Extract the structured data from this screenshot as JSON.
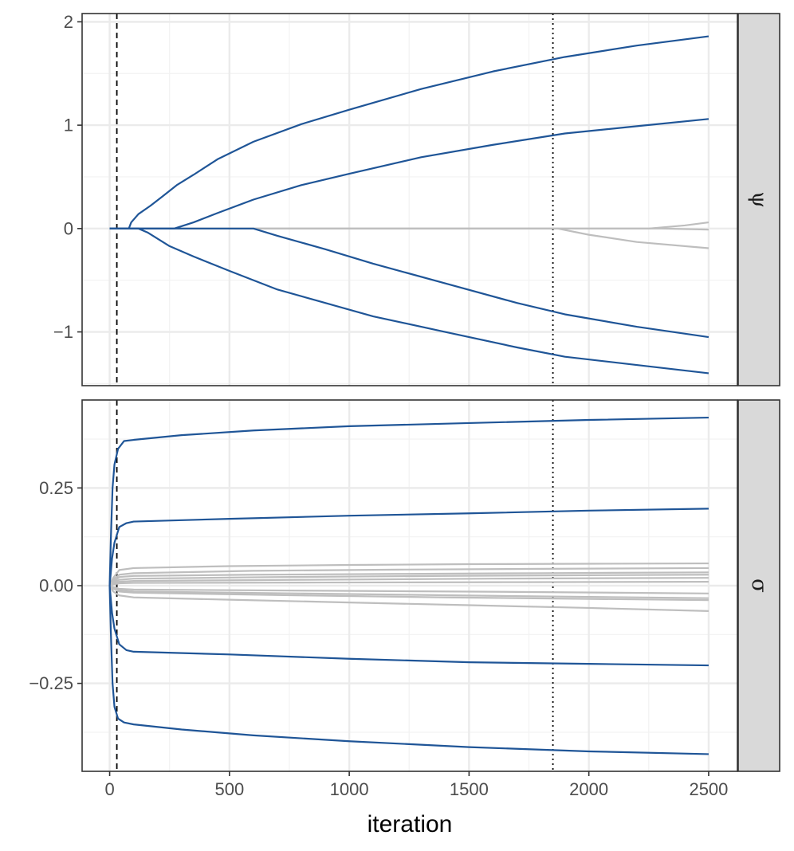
{
  "chart_data": {
    "type": "line",
    "title": "",
    "xlabel": "iteration",
    "x_ticks": [
      0,
      500,
      1000,
      1500,
      2000,
      2500
    ],
    "xlim": [
      -115,
      2620
    ],
    "vlines": [
      {
        "x": 30,
        "style": "dashed"
      },
      {
        "x": 1850,
        "style": "dotted"
      }
    ],
    "colors": {
      "highlight": "#1f5597",
      "other": "#bebebe"
    },
    "legend": "none",
    "grid": true,
    "panels": [
      {
        "strip": "ψ",
        "ylim": [
          -1.52,
          2.08
        ],
        "y_ticks": [
          -1,
          0,
          1,
          2
        ],
        "y_tick_labels": [
          "−1",
          "0",
          "1",
          "2"
        ],
        "series": [
          {
            "group": "highlight",
            "points": [
              [
                0,
                0
              ],
              [
                80,
                0
              ],
              [
                90,
                0.06
              ],
              [
                120,
                0.14
              ],
              [
                170,
                0.22
              ],
              [
                220,
                0.31
              ],
              [
                280,
                0.42
              ],
              [
                350,
                0.52
              ],
              [
                450,
                0.67
              ],
              [
                600,
                0.84
              ],
              [
                800,
                1.01
              ],
              [
                1000,
                1.15
              ],
              [
                1300,
                1.35
              ],
              [
                1600,
                1.52
              ],
              [
                1900,
                1.66
              ],
              [
                2200,
                1.77
              ],
              [
                2500,
                1.86
              ]
            ]
          },
          {
            "group": "highlight",
            "points": [
              [
                0,
                0
              ],
              [
                270,
                0
              ],
              [
                350,
                0.06
              ],
              [
                450,
                0.15
              ],
              [
                600,
                0.28
              ],
              [
                800,
                0.42
              ],
              [
                1000,
                0.53
              ],
              [
                1300,
                0.69
              ],
              [
                1600,
                0.81
              ],
              [
                1900,
                0.92
              ],
              [
                2200,
                0.99
              ],
              [
                2500,
                1.06
              ]
            ]
          },
          {
            "group": "highlight",
            "points": [
              [
                0,
                0
              ],
              [
                600,
                0
              ],
              [
                700,
                -0.07
              ],
              [
                900,
                -0.2
              ],
              [
                1100,
                -0.34
              ],
              [
                1400,
                -0.53
              ],
              [
                1700,
                -0.72
              ],
              [
                1900,
                -0.83
              ],
              [
                2200,
                -0.95
              ],
              [
                2500,
                -1.05
              ]
            ]
          },
          {
            "group": "highlight",
            "points": [
              [
                0,
                0
              ],
              [
                120,
                0
              ],
              [
                160,
                -0.04
              ],
              [
                250,
                -0.17
              ],
              [
                350,
                -0.27
              ],
              [
                500,
                -0.41
              ],
              [
                700,
                -0.59
              ],
              [
                900,
                -0.72
              ],
              [
                1100,
                -0.85
              ],
              [
                1400,
                -1.0
              ],
              [
                1700,
                -1.15
              ],
              [
                1900,
                -1.24
              ],
              [
                2200,
                -1.32
              ],
              [
                2500,
                -1.4
              ]
            ]
          },
          {
            "group": "other",
            "points": [
              [
                0,
                0
              ],
              [
                1870,
                0
              ],
              [
                2000,
                -0.06
              ],
              [
                2200,
                -0.13
              ],
              [
                2500,
                -0.19
              ]
            ]
          },
          {
            "group": "other",
            "points": [
              [
                0,
                0
              ],
              [
                2250,
                0
              ],
              [
                2400,
                0.03
              ],
              [
                2500,
                0.06
              ]
            ]
          },
          {
            "group": "other",
            "points": [
              [
                0,
                0
              ],
              [
                2300,
                0
              ],
              [
                2500,
                -0.01
              ]
            ]
          }
        ]
      },
      {
        "strip": "σ",
        "ylim": [
          -0.475,
          0.475
        ],
        "y_ticks": [
          -0.25,
          0,
          0.25
        ],
        "y_tick_labels": [
          "−0.25",
          "0.00",
          "0.25"
        ],
        "series": [
          {
            "group": "highlight",
            "points": [
              [
                0,
                0
              ],
              [
                5,
                0.12
              ],
              [
                12,
                0.25
              ],
              [
                20,
                0.31
              ],
              [
                35,
                0.35
              ],
              [
                60,
                0.37
              ],
              [
                100,
                0.373
              ],
              [
                300,
                0.385
              ],
              [
                600,
                0.397
              ],
              [
                1000,
                0.408
              ],
              [
                1500,
                0.416
              ],
              [
                2000,
                0.424
              ],
              [
                2500,
                0.43
              ]
            ]
          },
          {
            "group": "highlight",
            "points": [
              [
                0,
                0
              ],
              [
                10,
                0.07
              ],
              [
                20,
                0.11
              ],
              [
                40,
                0.15
              ],
              [
                70,
                0.16
              ],
              [
                100,
                0.164
              ],
              [
                500,
                0.171
              ],
              [
                1000,
                0.179
              ],
              [
                1500,
                0.185
              ],
              [
                2000,
                0.192
              ],
              [
                2500,
                0.197
              ]
            ]
          },
          {
            "group": "highlight",
            "points": [
              [
                0,
                0
              ],
              [
                10,
                -0.07
              ],
              [
                20,
                -0.11
              ],
              [
                40,
                -0.15
              ],
              [
                70,
                -0.165
              ],
              [
                100,
                -0.169
              ],
              [
                500,
                -0.176
              ],
              [
                1000,
                -0.187
              ],
              [
                1500,
                -0.196
              ],
              [
                2000,
                -0.2
              ],
              [
                2500,
                -0.204
              ]
            ]
          },
          {
            "group": "highlight",
            "points": [
              [
                0,
                0
              ],
              [
                5,
                -0.12
              ],
              [
                12,
                -0.25
              ],
              [
                20,
                -0.31
              ],
              [
                35,
                -0.34
              ],
              [
                60,
                -0.35
              ],
              [
                100,
                -0.355
              ],
              [
                300,
                -0.368
              ],
              [
                600,
                -0.383
              ],
              [
                1000,
                -0.398
              ],
              [
                1500,
                -0.413
              ],
              [
                2000,
                -0.424
              ],
              [
                2500,
                -0.431
              ]
            ]
          },
          {
            "group": "other",
            "points": [
              [
                0,
                0
              ],
              [
                15,
                0.02
              ],
              [
                40,
                0.04
              ],
              [
                100,
                0.045
              ],
              [
                500,
                0.05
              ],
              [
                1000,
                0.053
              ],
              [
                1500,
                0.055
              ],
              [
                2000,
                0.056
              ],
              [
                2500,
                0.057
              ]
            ]
          },
          {
            "group": "other",
            "points": [
              [
                0,
                0
              ],
              [
                15,
                0.015
              ],
              [
                40,
                0.028
              ],
              [
                100,
                0.032
              ],
              [
                600,
                0.038
              ],
              [
                1200,
                0.041
              ],
              [
                1800,
                0.043
              ],
              [
                2500,
                0.045
              ]
            ]
          },
          {
            "group": "other",
            "points": [
              [
                0,
                0
              ],
              [
                15,
                0.01
              ],
              [
                40,
                0.022
              ],
              [
                100,
                0.025
              ],
              [
                600,
                0.028
              ],
              [
                1200,
                0.03
              ],
              [
                1800,
                0.032
              ],
              [
                2500,
                0.034
              ]
            ]
          },
          {
            "group": "other",
            "points": [
              [
                0,
                0
              ],
              [
                15,
                0.008
              ],
              [
                40,
                0.015
              ],
              [
                100,
                0.018
              ],
              [
                700,
                0.022
              ],
              [
                1400,
                0.025
              ],
              [
                2500,
                0.028
              ]
            ]
          },
          {
            "group": "other",
            "points": [
              [
                0,
                0
              ],
              [
                15,
                0.005
              ],
              [
                40,
                0.01
              ],
              [
                100,
                0.012
              ],
              [
                800,
                0.015
              ],
              [
                1600,
                0.018
              ],
              [
                2500,
                0.02
              ]
            ]
          },
          {
            "group": "other",
            "points": [
              [
                0,
                0
              ],
              [
                15,
                0.003
              ],
              [
                40,
                0.006
              ],
              [
                100,
                0.007
              ],
              [
                900,
                0.008
              ],
              [
                1700,
                0.009
              ],
              [
                2500,
                0.01
              ]
            ]
          },
          {
            "group": "other",
            "points": [
              [
                0,
                0
              ],
              [
                15,
                -0.004
              ],
              [
                40,
                -0.008
              ],
              [
                100,
                -0.01
              ],
              [
                900,
                -0.013
              ],
              [
                1700,
                -0.016
              ],
              [
                2500,
                -0.02
              ]
            ]
          },
          {
            "group": "other",
            "points": [
              [
                0,
                0
              ],
              [
                15,
                -0.006
              ],
              [
                40,
                -0.012
              ],
              [
                100,
                -0.015
              ],
              [
                800,
                -0.02
              ],
              [
                1600,
                -0.026
              ],
              [
                2500,
                -0.032
              ]
            ]
          },
          {
            "group": "other",
            "points": [
              [
                0,
                0
              ],
              [
                15,
                -0.008
              ],
              [
                40,
                -0.015
              ],
              [
                100,
                -0.018
              ],
              [
                700,
                -0.024
              ],
              [
                1400,
                -0.03
              ],
              [
                2500,
                -0.037
              ]
            ]
          },
          {
            "group": "other",
            "points": [
              [
                0,
                0
              ],
              [
                15,
                -0.015
              ],
              [
                40,
                -0.025
              ],
              [
                100,
                -0.03
              ],
              [
                500,
                -0.036
              ],
              [
                1000,
                -0.043
              ],
              [
                1500,
                -0.05
              ],
              [
                2000,
                -0.057
              ],
              [
                2500,
                -0.065
              ]
            ]
          }
        ]
      }
    ]
  }
}
